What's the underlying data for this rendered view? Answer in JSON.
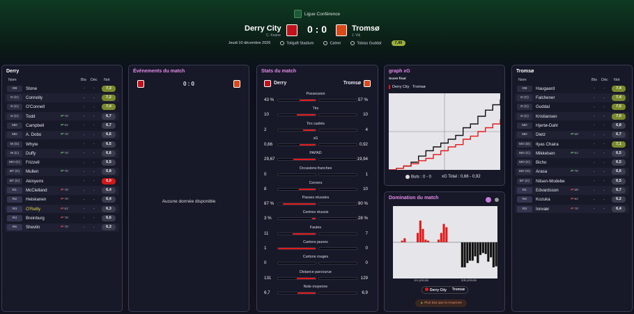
{
  "header": {
    "competition": "Ligue Conférence",
    "home": {
      "name": "Derry City",
      "coach": "C. Keane"
    },
    "away": {
      "name": "Tromsø",
      "coach": "J. Vik"
    },
    "score": "0 : 0",
    "date": "Jeudi 10 décembre 2026",
    "stadium": "Tollgaft Stadium",
    "weather": "Calme",
    "referee": "Tobias Guddal",
    "referee_rating": "7,49"
  },
  "lineup_headers": {
    "name": "Nom",
    "goals": "Bts",
    "dec": "Déc",
    "note": "Not"
  },
  "home_lineup": {
    "title": "Derry",
    "players": [
      {
        "pos": "GB",
        "name": "Stone",
        "sub": "",
        "goals": "-",
        "dec": "-",
        "note": "7,3",
        "color": "#7a8a2a"
      },
      {
        "pos": "D (C)",
        "name": "Connolly",
        "sub": "",
        "goals": "-",
        "dec": "-",
        "note": "7,2",
        "color": "#7a8a2a"
      },
      {
        "pos": "D (C)",
        "name": "O'Connell",
        "sub": "",
        "goals": "-",
        "dec": "-",
        "note": "7,4",
        "color": "#7a8a2a"
      },
      {
        "pos": "D (C)",
        "name": "Todd",
        "sub": "75'",
        "goals": "-",
        "dec": "-",
        "note": "6,7",
        "color": "#3a3c4e"
      },
      {
        "pos": "MD",
        "name": "Campbell",
        "sub": "81'",
        "goals": "-",
        "dec": "-",
        "note": "6,7",
        "color": "#3a3c4e"
      },
      {
        "pos": "MD",
        "name": "A. Dobo",
        "sub": "75'",
        "goals": "-",
        "dec": "-",
        "note": "6,6",
        "color": "#3a3c4e"
      },
      {
        "pos": "M (G)",
        "name": "Whyte",
        "sub": "",
        "goals": "-",
        "dec": "-",
        "note": "6,5",
        "color": "#3a3c4e"
      },
      {
        "pos": "M (C)",
        "name": "Duffy",
        "sub": "76'",
        "goals": "-",
        "dec": "-",
        "note": "6,6",
        "color": "#3a3c4e"
      },
      {
        "pos": "MO (C)",
        "name": "Frizzell",
        "sub": "",
        "goals": "-",
        "dec": "-",
        "note": "6,5",
        "color": "#3a3c4e"
      },
      {
        "pos": "BT (C)",
        "name": "Mullen",
        "sub": "75'",
        "goals": "-",
        "dec": "-",
        "note": "6,8",
        "color": "#3a3c4e"
      },
      {
        "pos": "BT (C)",
        "name": "Akinyemi",
        "sub": "",
        "goals": "-",
        "dec": "-",
        "note": "6,0",
        "color": "#d01818"
      },
      {
        "pos": "R1",
        "name": "McClelland",
        "sub": "75'",
        "goals": "-",
        "dec": "-",
        "note": "6,4",
        "color": "#3a3c4e"
      },
      {
        "pos": "R2",
        "name": "Heiskanen",
        "sub": "76'",
        "goals": "-",
        "dec": "-",
        "note": "6,4",
        "color": "#3a3c4e"
      },
      {
        "pos": "R3",
        "name": "O'Reilly",
        "sub": "81'",
        "goals": "-",
        "dec": "-",
        "note": "6,3",
        "color": "#3a3c4e"
      },
      {
        "pos": "R4",
        "name": "Breinburg",
        "sub": "75'",
        "goals": "-",
        "dec": "-",
        "note": "6,6",
        "color": "#3a3c4e"
      },
      {
        "pos": "R5",
        "name": "Shevlin",
        "sub": "75'",
        "goals": "-",
        "dec": "-",
        "note": "6,3",
        "color": "#3a3c4e"
      }
    ]
  },
  "events": {
    "title": "Événements du match",
    "score": "0 : 0",
    "empty": "Aucune donnée disponible"
  },
  "stats": {
    "title": "Stats du match",
    "home": "Derry",
    "away": "Tromsø",
    "rows": [
      {
        "label": "Possession",
        "home": "43 %",
        "away": "57 %",
        "hf": 0.43,
        "af": 0.57
      },
      {
        "label": "Tirs",
        "home": "10",
        "away": "10",
        "hf": 0.5,
        "af": 0.5
      },
      {
        "label": "Tirs cadrés",
        "home": "2",
        "away": "4",
        "hf": 0.33,
        "af": 0.67
      },
      {
        "label": "xG",
        "home": "0,66",
        "away": "0,92",
        "hf": 0.42,
        "af": 0.58
      },
      {
        "label": "PAPAD",
        "home": "29,67",
        "away": "19,94",
        "hf": 0.6,
        "af": 0.4
      },
      {
        "label": "Occasions franches",
        "home": "0",
        "away": "1",
        "hf": 0.0,
        "af": 1.0
      },
      {
        "label": "Corners",
        "home": "8",
        "away": "10",
        "hf": 0.44,
        "af": 0.56
      },
      {
        "label": "Passes réussies",
        "home": "87 %",
        "away": "90 %",
        "hf": 0.87,
        "af": 0.9
      },
      {
        "label": "Centres réussis",
        "home": "3 %",
        "away": "28 %",
        "hf": 0.1,
        "af": 0.9
      },
      {
        "label": "Fautes",
        "home": "11",
        "away": "7",
        "hf": 0.61,
        "af": 0.39
      },
      {
        "label": "Cartons jaunes",
        "home": "1",
        "away": "0",
        "hf": 1.0,
        "af": 0.0
      },
      {
        "label": "Cartons rouges",
        "home": "0",
        "away": "0",
        "hf": 0.0,
        "af": 0.0
      },
      {
        "label": "Distance parcourue",
        "home": "131",
        "away": "129",
        "hf": 0.5,
        "af": 0.5
      },
      {
        "label": "Note moyenne",
        "home": "6,7",
        "away": "6,9",
        "hf": 0.49,
        "af": 0.51
      }
    ]
  },
  "xg": {
    "title": "graph xG",
    "subtitle": "Score final",
    "legend_home": "Derry City",
    "legend_away": "Tromsø",
    "goals": "Buts : 0 - 0",
    "xg_total": "xG  Total : 0,66  -  0,92",
    "home_steps": [
      0,
      0.02,
      0.05,
      0.08,
      0.12,
      0.15,
      0.2,
      0.25,
      0.3,
      0.33,
      0.4,
      0.44,
      0.5,
      0.55,
      0.6,
      0.66
    ],
    "away_steps": [
      0,
      0.02,
      0.05,
      0.1,
      0.18,
      0.25,
      0.3,
      0.35,
      0.4,
      0.45,
      0.55,
      0.6,
      0.7,
      0.78,
      0.85,
      0.92
    ]
  },
  "domination": {
    "title": "Domination du match",
    "label_first": "1re période",
    "label_second": "2de période",
    "legend_home": "Derry City",
    "legend_away": "Tromsø",
    "button": "Plus bas que la moyenne",
    "values": [
      0,
      0,
      0,
      0.05,
      0.12,
      0,
      0,
      0,
      0,
      0.28,
      0.65,
      0.4,
      0.08,
      0.05,
      0,
      0,
      0,
      0.08,
      0.28,
      0.55,
      0.45,
      0,
      0,
      0,
      0,
      0,
      -0.75,
      -0.75,
      -0.62,
      -0.55,
      -0.55,
      -0.42,
      -0.62,
      -0.38,
      -0.32,
      -0.35,
      -0.58,
      -0.45,
      -0.75,
      -0.72
    ]
  },
  "away_lineup": {
    "title": "Tromsø",
    "players": [
      {
        "pos": "GB",
        "name": "Haugaard",
        "sub": "",
        "goals": "-",
        "dec": "-",
        "note": "7,4",
        "color": "#7a8a2a"
      },
      {
        "pos": "D (C)",
        "name": "Falchener",
        "sub": "",
        "goals": "-",
        "dec": "-",
        "note": "7,4",
        "color": "#7a8a2a"
      },
      {
        "pos": "D (C)",
        "name": "Guddal",
        "sub": "",
        "goals": "-",
        "dec": "-",
        "note": "7,5",
        "color": "#7a8a2a"
      },
      {
        "pos": "D (C)",
        "name": "Kristiansen",
        "sub": "",
        "goals": "-",
        "dec": "-",
        "note": "7,0",
        "color": "#7a8a2a"
      },
      {
        "pos": "MD",
        "name": "Hjertø-Dahl",
        "sub": "",
        "goals": "-",
        "dec": "-",
        "note": "6,8",
        "color": "#3a3c4e"
      },
      {
        "pos": "MD",
        "name": "Dietz",
        "sub": "89'",
        "goals": "-",
        "dec": "-",
        "note": "6,7",
        "color": "#3a3c4e"
      },
      {
        "pos": "MO (D)",
        "name": "Ilyas Chaira",
        "sub": "",
        "goals": "-",
        "dec": "-",
        "note": "7,1",
        "color": "#7a8a2a"
      },
      {
        "pos": "MO (C)",
        "name": "Mikkelsen",
        "sub": "81'",
        "goals": "-",
        "dec": "-",
        "note": "6,5",
        "color": "#3a3c4e"
      },
      {
        "pos": "MO (C)",
        "name": "Bicho",
        "sub": "",
        "goals": "-",
        "dec": "-",
        "note": "6,5",
        "color": "#3a3c4e"
      },
      {
        "pos": "MO (G)",
        "name": "Arasa",
        "sub": "75'",
        "goals": "-",
        "dec": "-",
        "note": "6,6",
        "color": "#3a3c4e"
      },
      {
        "pos": "BT (C)",
        "name": "Nilsen-Modebe",
        "sub": "",
        "goals": "-",
        "dec": "-",
        "note": "6,5",
        "color": "#3a3c4e"
      },
      {
        "pos": "R1",
        "name": "Edvardsson",
        "sub": "89'",
        "goals": "-",
        "dec": "-",
        "note": "6,7",
        "color": "#3a3c4e"
      },
      {
        "pos": "R2",
        "name": "Kozuka",
        "sub": "81'",
        "goals": "-",
        "dec": "-",
        "note": "6,2",
        "color": "#3a3c4e"
      },
      {
        "pos": "R3",
        "name": "Innvær",
        "sub": "75'",
        "goals": "-",
        "dec": "-",
        "note": "6,4",
        "color": "#3a3c4e"
      }
    ]
  }
}
